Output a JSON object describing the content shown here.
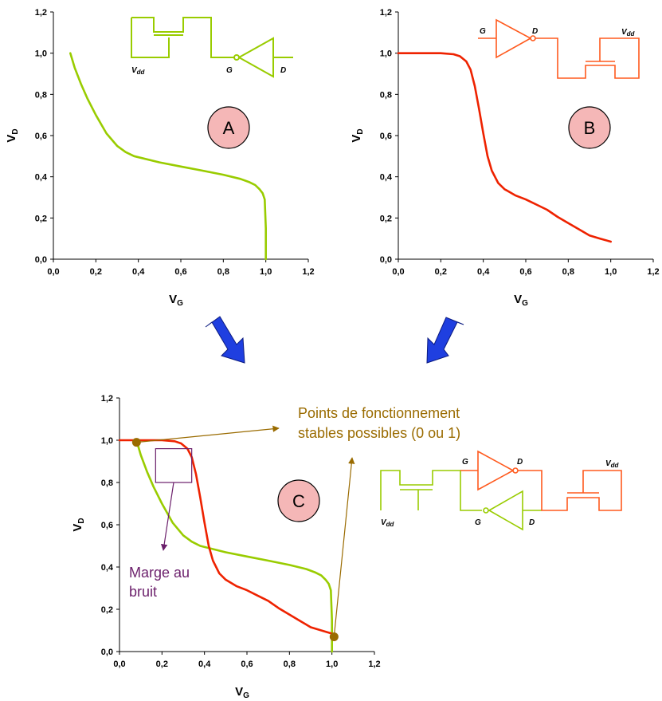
{
  "colors": {
    "green": "#99cc00",
    "red": "#ee2200",
    "orange_circuit": "#ff5a1e",
    "brown": "#9a6b00",
    "purple": "#6b1f6b",
    "blue_arrow": "#1f3fe0",
    "circle_fill": "#f5b7b7"
  },
  "circuits": {
    "vdd_text": "V",
    "vdd_sub": "dd",
    "g_text": "G",
    "d_text": "D"
  },
  "chart_data": [
    {
      "id": "A",
      "type": "line",
      "circle_label": "A",
      "xlabel": "V",
      "xlabel_sub": "G",
      "ylabel": "V",
      "ylabel_sub": "D",
      "xlim": [
        0,
        1.2
      ],
      "ylim": [
        0,
        1.2
      ],
      "xticks": [
        "0,0",
        "0,2",
        "0,4",
        "0,6",
        "0,8",
        "1,0",
        "1,2"
      ],
      "yticks": [
        "0,0",
        "0,2",
        "0,4",
        "0,6",
        "0,8",
        "1,0",
        "1,2"
      ],
      "series": [
        {
          "color": "green",
          "x": [
            0.08,
            0.1,
            0.13,
            0.16,
            0.2,
            0.25,
            0.3,
            0.34,
            0.38,
            0.5,
            0.6,
            0.7,
            0.8,
            0.88,
            0.92,
            0.95,
            0.97,
            0.985,
            0.995,
            1.0,
            1.0
          ],
          "y": [
            1.0,
            0.93,
            0.85,
            0.78,
            0.7,
            0.61,
            0.55,
            0.52,
            0.5,
            0.47,
            0.45,
            0.43,
            0.41,
            0.39,
            0.375,
            0.36,
            0.34,
            0.32,
            0.29,
            0.15,
            0.0
          ]
        }
      ]
    },
    {
      "id": "B",
      "type": "line",
      "circle_label": "B",
      "xlabel": "V",
      "xlabel_sub": "G",
      "ylabel": "V",
      "ylabel_sub": "D",
      "xlim": [
        0,
        1.2
      ],
      "ylim": [
        0,
        1.2
      ],
      "xticks": [
        "0,0",
        "0,2",
        "0,4",
        "0,6",
        "0,8",
        "1,0",
        "1,2"
      ],
      "yticks": [
        "0,0",
        "0,2",
        "0,4",
        "0,6",
        "0,8",
        "1,0",
        "1,2"
      ],
      "series": [
        {
          "color": "red",
          "x": [
            0.0,
            0.1,
            0.2,
            0.26,
            0.29,
            0.32,
            0.34,
            0.36,
            0.38,
            0.4,
            0.42,
            0.44,
            0.47,
            0.5,
            0.55,
            0.6,
            0.65,
            0.7,
            0.75,
            0.8,
            0.85,
            0.9,
            0.95,
            1.0
          ],
          "y": [
            1.0,
            1.0,
            1.0,
            0.995,
            0.985,
            0.96,
            0.92,
            0.84,
            0.73,
            0.61,
            0.5,
            0.43,
            0.37,
            0.34,
            0.31,
            0.29,
            0.265,
            0.24,
            0.205,
            0.175,
            0.145,
            0.115,
            0.1,
            0.085
          ]
        }
      ]
    },
    {
      "id": "C",
      "type": "line",
      "circle_label": "C",
      "xlabel": "V",
      "xlabel_sub": "G",
      "ylabel": "V",
      "ylabel_sub": "D",
      "xlim": [
        0,
        1.2
      ],
      "ylim": [
        0,
        1.2
      ],
      "xticks": [
        "0,0",
        "0,2",
        "0,4",
        "0,6",
        "0,8",
        "1,0",
        "1,2"
      ],
      "yticks": [
        "0,0",
        "0,2",
        "0,4",
        "0,6",
        "0,8",
        "1,0",
        "1,2"
      ],
      "series": [
        {
          "color": "green",
          "x": [
            0.08,
            0.1,
            0.13,
            0.16,
            0.2,
            0.25,
            0.3,
            0.34,
            0.38,
            0.5,
            0.6,
            0.7,
            0.8,
            0.88,
            0.92,
            0.95,
            0.97,
            0.985,
            0.995,
            1.0,
            1.0
          ],
          "y": [
            1.0,
            0.93,
            0.85,
            0.78,
            0.7,
            0.61,
            0.55,
            0.52,
            0.5,
            0.47,
            0.45,
            0.43,
            0.41,
            0.39,
            0.375,
            0.36,
            0.34,
            0.32,
            0.29,
            0.15,
            0.0
          ]
        },
        {
          "color": "red",
          "x": [
            0.0,
            0.1,
            0.2,
            0.26,
            0.29,
            0.32,
            0.34,
            0.36,
            0.38,
            0.4,
            0.42,
            0.44,
            0.47,
            0.5,
            0.55,
            0.6,
            0.65,
            0.7,
            0.75,
            0.8,
            0.85,
            0.9,
            0.95,
            1.0
          ],
          "y": [
            1.0,
            1.0,
            1.0,
            0.995,
            0.985,
            0.96,
            0.92,
            0.84,
            0.73,
            0.61,
            0.5,
            0.43,
            0.37,
            0.34,
            0.31,
            0.29,
            0.265,
            0.24,
            0.205,
            0.175,
            0.145,
            0.115,
            0.1,
            0.085
          ]
        }
      ],
      "stable_points": [
        {
          "x": 0.08,
          "y": 0.99
        },
        {
          "x": 1.01,
          "y": 0.07
        }
      ],
      "noise_margin_box": {
        "x0": 0.17,
        "x1": 0.34,
        "y0": 0.8,
        "y1": 0.96
      },
      "annotations": {
        "stable_line1": "Points de fonctionnement",
        "stable_line2": "stables possibles (0 ou 1)",
        "margin_line1": "Marge au",
        "margin_line2": "bruit"
      }
    }
  ]
}
